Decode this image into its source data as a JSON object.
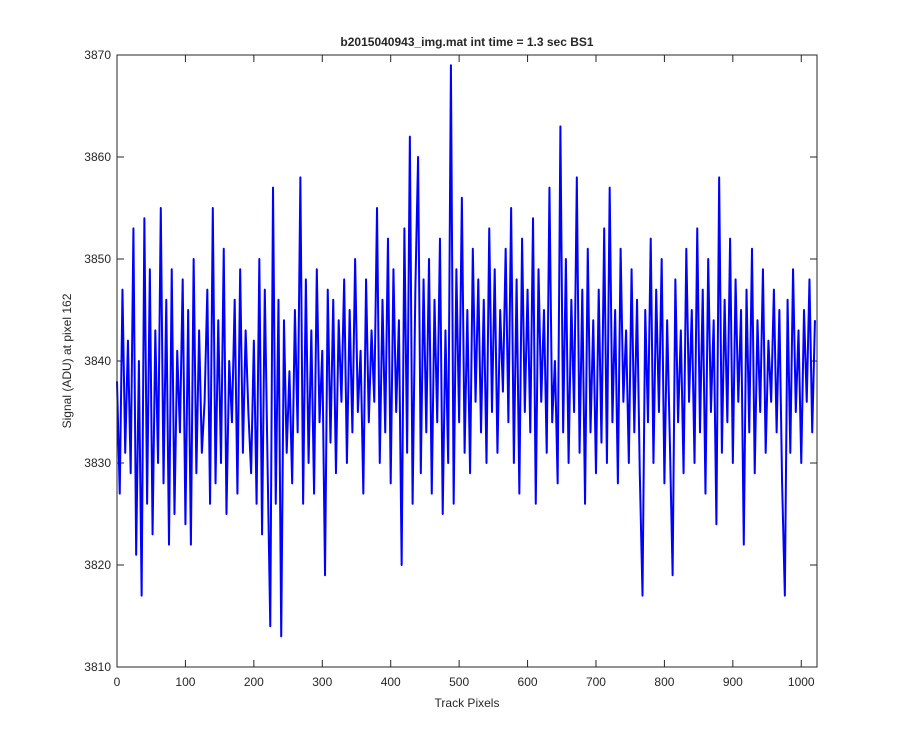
{
  "chart_data": {
    "type": "line",
    "title": "b2015040943_img.mat int time = 1.3 sec   BS1",
    "x_label": "Track Pixels",
    "y_label": "Signal (ADU) at pixel 162",
    "xlim": [
      0,
      1023
    ],
    "ylim": [
      3810,
      3870
    ],
    "xticks": [
      0,
      100,
      200,
      300,
      400,
      500,
      600,
      700,
      800,
      900,
      1000
    ],
    "yticks": [
      3810,
      3820,
      3830,
      3840,
      3850,
      3860,
      3870
    ],
    "grid": false,
    "x": [
      0,
      4,
      8,
      12,
      16,
      20,
      24,
      28,
      32,
      36,
      40,
      44,
      48,
      52,
      56,
      60,
      64,
      68,
      72,
      76,
      80,
      84,
      88,
      92,
      96,
      100,
      104,
      108,
      112,
      116,
      120,
      124,
      128,
      132,
      136,
      140,
      144,
      148,
      152,
      156,
      160,
      164,
      168,
      172,
      176,
      180,
      184,
      188,
      192,
      196,
      200,
      204,
      208,
      212,
      216,
      220,
      224,
      228,
      232,
      236,
      240,
      244,
      248,
      252,
      256,
      260,
      264,
      268,
      272,
      276,
      280,
      284,
      288,
      292,
      296,
      300,
      304,
      308,
      312,
      316,
      320,
      324,
      328,
      332,
      336,
      340,
      344,
      348,
      352,
      356,
      360,
      364,
      368,
      372,
      376,
      380,
      384,
      388,
      392,
      396,
      400,
      404,
      408,
      412,
      416,
      420,
      424,
      428,
      432,
      436,
      440,
      444,
      448,
      452,
      456,
      460,
      464,
      468,
      472,
      476,
      480,
      484,
      488,
      492,
      496,
      500,
      504,
      508,
      512,
      516,
      520,
      524,
      528,
      532,
      536,
      540,
      544,
      548,
      552,
      556,
      560,
      564,
      568,
      572,
      576,
      580,
      584,
      588,
      592,
      596,
      600,
      604,
      608,
      612,
      616,
      620,
      624,
      628,
      632,
      636,
      640,
      644,
      648,
      652,
      656,
      660,
      664,
      668,
      672,
      676,
      680,
      684,
      688,
      692,
      696,
      700,
      704,
      708,
      712,
      716,
      720,
      724,
      728,
      732,
      736,
      740,
      744,
      748,
      752,
      756,
      760,
      764,
      768,
      772,
      776,
      780,
      784,
      788,
      792,
      796,
      800,
      804,
      808,
      812,
      816,
      820,
      824,
      828,
      832,
      836,
      840,
      844,
      848,
      852,
      856,
      860,
      864,
      868,
      872,
      876,
      880,
      884,
      888,
      892,
      896,
      900,
      904,
      908,
      912,
      916,
      920,
      924,
      928,
      932,
      936,
      940,
      944,
      948,
      952,
      956,
      960,
      964,
      968,
      972,
      976,
      980,
      984,
      988,
      992,
      996,
      1000,
      1004,
      1008,
      1012,
      1016,
      1020
    ],
    "series": [
      {
        "color": "#0000ff",
        "values": [
          3838,
          3827,
          3847,
          3831,
          3842,
          3829,
          3853,
          3821,
          3840,
          3817,
          3854,
          3826,
          3849,
          3823,
          3843,
          3830,
          3855,
          3828,
          3846,
          3822,
          3849,
          3825,
          3841,
          3833,
          3848,
          3824,
          3845,
          3822,
          3850,
          3829,
          3843,
          3831,
          3836,
          3847,
          3826,
          3855,
          3828,
          3844,
          3830,
          3851,
          3825,
          3840,
          3834,
          3846,
          3827,
          3849,
          3831,
          3843,
          3835,
          3829,
          3842,
          3826,
          3850,
          3823,
          3847,
          3830,
          3814,
          3857,
          3826,
          3846,
          3813,
          3844,
          3831,
          3839,
          3828,
          3845,
          3833,
          3858,
          3826,
          3848,
          3830,
          3843,
          3827,
          3849,
          3834,
          3841,
          3819,
          3847,
          3832,
          3846,
          3829,
          3844,
          3836,
          3848,
          3830,
          3845,
          3833,
          3850,
          3835,
          3841,
          3827,
          3848,
          3834,
          3843,
          3836,
          3855,
          3830,
          3846,
          3833,
          3852,
          3828,
          3849,
          3835,
          3844,
          3820,
          3853,
          3831,
          3862,
          3826,
          3847,
          3860,
          3829,
          3848,
          3833,
          3850,
          3827,
          3846,
          3834,
          3852,
          3825,
          3843,
          3830,
          3869,
          3826,
          3849,
          3834,
          3856,
          3831,
          3845,
          3829,
          3851,
          3836,
          3848,
          3833,
          3846,
          3830,
          3853,
          3835,
          3849,
          3831,
          3845,
          3837,
          3851,
          3834,
          3855,
          3830,
          3848,
          3827,
          3852,
          3835,
          3847,
          3833,
          3854,
          3826,
          3849,
          3836,
          3845,
          3831,
          3857,
          3834,
          3840,
          3828,
          3863,
          3833,
          3850,
          3830,
          3846,
          3835,
          3858,
          3831,
          3847,
          3826,
          3851,
          3833,
          3844,
          3829,
          3847,
          3832,
          3853,
          3830,
          3857,
          3834,
          3845,
          3828,
          3851,
          3836,
          3843,
          3830,
          3849,
          3833,
          3846,
          3829,
          3817,
          3845,
          3834,
          3852,
          3830,
          3847,
          3835,
          3850,
          3828,
          3844,
          3832,
          3819,
          3848,
          3834,
          3843,
          3829,
          3851,
          3836,
          3845,
          3830,
          3853,
          3833,
          3847,
          3827,
          3850,
          3835,
          3844,
          3824,
          3858,
          3831,
          3846,
          3834,
          3852,
          3830,
          3848,
          3836,
          3845,
          3822,
          3847,
          3833,
          3851,
          3829,
          3844,
          3835,
          3849,
          3831,
          3842,
          3836,
          3847,
          3833,
          3845,
          3828,
          3817,
          3846,
          3831,
          3849,
          3835,
          3843,
          3830,
          3845,
          3836,
          3848,
          3833,
          3844
        ]
      }
    ]
  }
}
